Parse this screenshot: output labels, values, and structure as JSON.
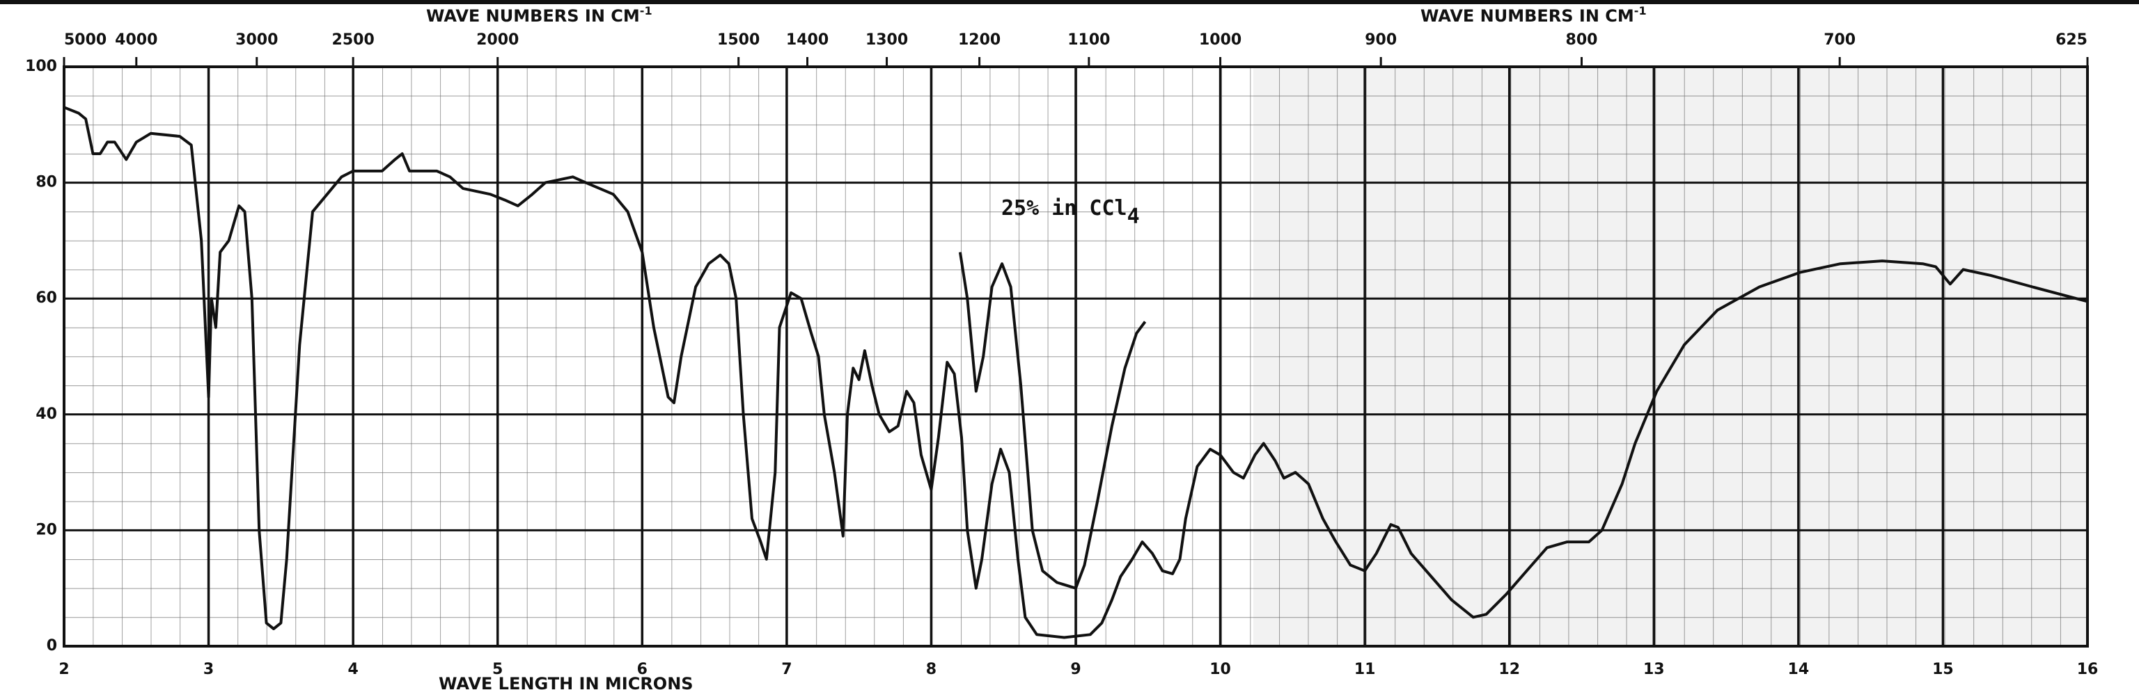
{
  "chart_data": {
    "type": "line",
    "x2label": "WAVE NUMBERS IN CM",
    "x2label_sup": "-1",
    "xlabel": "WAVE LENGTH IN MICRONS",
    "annotation": {
      "text": "25% in CCl",
      "subscript": "4"
    },
    "xlim": [
      2,
      16
    ],
    "ylim": [
      0,
      100
    ],
    "xticks": [
      2,
      3,
      4,
      5,
      6,
      7,
      8,
      9,
      10,
      11,
      12,
      13,
      14,
      15,
      16
    ],
    "yticks": [
      0,
      20,
      40,
      60,
      80,
      100
    ],
    "x2scale": "reciprocal",
    "x2ticks": [
      5000,
      4000,
      3000,
      2500,
      2000,
      1500,
      1400,
      1300,
      1200,
      1100,
      1000,
      900,
      800,
      700,
      625
    ],
    "grid": true,
    "series": [
      {
        "color": "#111111",
        "x": [
          2.0,
          2.1,
          2.15,
          2.2,
          2.25,
          2.3,
          2.35,
          2.43,
          2.5,
          2.6,
          2.8,
          2.88,
          2.95,
          3.0,
          3.02,
          3.05,
          3.08,
          3.14,
          3.21,
          3.25,
          3.3,
          3.35,
          3.4,
          3.45,
          3.5,
          3.54,
          3.63,
          3.72,
          3.82,
          3.92,
          4.0,
          4.2,
          4.29,
          4.34,
          4.39,
          4.58,
          4.67,
          4.76,
          4.95,
          5.05,
          5.14,
          5.24,
          5.33,
          5.52,
          5.61,
          5.8,
          5.9,
          6.0,
          6.08,
          6.18,
          6.22,
          6.27,
          6.37,
          6.46,
          6.54,
          6.6,
          6.65,
          6.7,
          6.76,
          6.82,
          6.86,
          6.92,
          6.95,
          7.03,
          7.1,
          7.17,
          7.22,
          7.26,
          7.33,
          7.39,
          7.42,
          7.46,
          7.5,
          7.54,
          7.59,
          7.64,
          7.71,
          7.77,
          7.83,
          7.88,
          7.93,
          8.0,
          8.05,
          8.11,
          8.16,
          8.21,
          8.25,
          8.31,
          8.35,
          8.42,
          8.48,
          8.54,
          8.6,
          8.65,
          8.73,
          8.92,
          9.1,
          9.18,
          9.25,
          9.31,
          9.39,
          9.46,
          9.53,
          9.6,
          9.67,
          9.72,
          9.76,
          9.84,
          9.93,
          10.0,
          10.09,
          10.16,
          10.24,
          10.3,
          10.38,
          10.44,
          10.52,
          10.61,
          10.71,
          10.8,
          10.9,
          11.0,
          11.08,
          11.18,
          11.23,
          11.32,
          11.46,
          11.6,
          11.75,
          11.84,
          11.98,
          12.12,
          12.26,
          12.4,
          12.55,
          12.64,
          12.78,
          12.87,
          13.02,
          13.21,
          13.44,
          13.73,
          14.01,
          14.29,
          14.58,
          14.86,
          14.95,
          15.05,
          15.14,
          15.33,
          15.62,
          16.0
        ],
        "values": [
          93,
          92,
          91,
          85,
          85,
          87,
          87,
          84,
          87,
          88.5,
          88,
          86.5,
          70,
          43,
          60,
          55,
          68,
          70,
          76,
          75,
          60,
          20,
          4,
          3,
          4,
          15,
          52,
          75,
          78,
          81,
          82,
          82,
          84,
          85,
          82,
          82,
          81,
          79,
          78,
          77,
          76,
          78,
          80,
          81,
          80,
          78,
          75,
          68,
          55,
          43,
          42,
          50,
          62,
          66,
          67.5,
          66,
          60,
          40,
          22,
          18,
          15,
          30,
          55,
          61,
          60,
          54,
          50,
          40,
          30,
          19,
          40,
          48,
          46,
          51,
          45,
          40,
          37,
          38,
          44,
          42,
          33,
          27,
          36,
          49,
          47,
          36,
          20,
          10,
          15,
          28,
          34,
          30,
          15,
          5,
          2,
          1.5,
          2,
          4,
          8,
          12,
          15,
          18,
          16,
          13,
          12.5,
          15,
          22,
          31,
          34,
          33,
          30,
          29,
          33,
          35,
          32,
          29,
          30,
          28,
          22,
          18,
          14,
          13,
          16,
          21,
          20.5,
          16,
          12,
          8,
          5,
          5.5,
          9,
          13,
          17,
          18,
          18,
          20,
          28,
          35,
          44,
          52,
          58,
          62,
          64.5,
          66,
          66.5,
          66,
          65.5,
          62.5,
          65,
          64,
          62,
          59.5
        ]
      },
      {
        "color": "#111111",
        "x": [
          8.2,
          8.25,
          8.31,
          8.36,
          8.42,
          8.49,
          8.55,
          8.62,
          8.7,
          8.77,
          8.87,
          9.0,
          9.06,
          9.15,
          9.25,
          9.34,
          9.42,
          9.48
        ],
        "values": [
          68,
          60,
          44,
          50,
          62,
          66,
          62,
          45,
          20,
          13,
          11,
          10,
          14,
          25,
          38,
          48,
          54,
          56
        ]
      }
    ]
  }
}
